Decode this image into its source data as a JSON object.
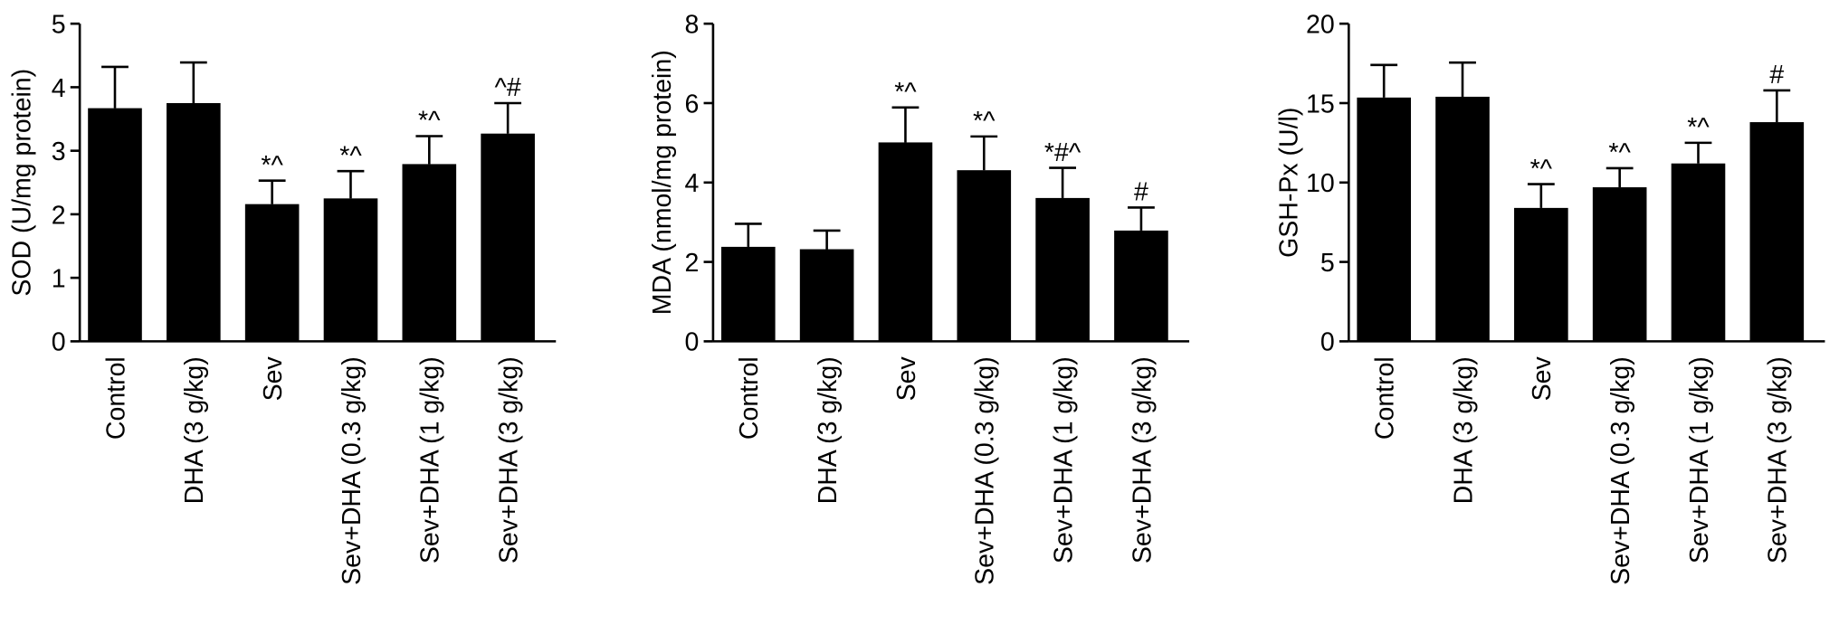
{
  "chart_data": [
    {
      "type": "bar",
      "y_label": "SOD (U/mg protein)",
      "categories": [
        "Control",
        "DHA (3 g/kg)",
        "Sev",
        "Sev+DHA (0.3 g/kg)",
        "Sev+DHA (1 g/kg)",
        "Sev+DHA (3 g/kg)"
      ],
      "values": [
        3.67,
        3.75,
        2.16,
        2.25,
        2.79,
        3.27
      ],
      "errors": [
        0.65,
        0.64,
        0.37,
        0.43,
        0.44,
        0.48
      ],
      "annotations": [
        null,
        null,
        "*^",
        "*^",
        "*^",
        "^#"
      ],
      "color": "#000000",
      "ylim": [
        0,
        5
      ],
      "yticks": [
        0,
        1,
        2,
        3,
        4,
        5
      ]
    },
    {
      "type": "bar",
      "y_label": "MDA (nmol/mg protein)",
      "categories": [
        "Control",
        "DHA (3 g/kg)",
        "Sev",
        "Sev+DHA (0.3 g/kg)",
        "Sev+DHA (1 g/kg)",
        "Sev+DHA (3 g/kg)"
      ],
      "values": [
        2.38,
        2.32,
        5.01,
        4.31,
        3.61,
        2.79
      ],
      "errors": [
        0.58,
        0.47,
        0.88,
        0.85,
        0.76,
        0.58
      ],
      "annotations": [
        null,
        null,
        "*^",
        "*^",
        "*#^",
        "#"
      ],
      "color": "#000000",
      "ylim": [
        0,
        8
      ],
      "yticks": [
        0,
        2,
        4,
        6,
        8
      ]
    },
    {
      "type": "bar",
      "y_label": "GSH-Px (U/l)",
      "categories": [
        "Control",
        "DHA (3 g/kg)",
        "Sev",
        "Sev+DHA (0.3 g/kg)",
        "Sev+DHA (1 g/kg)",
        "Sev+DHA (3 g/kg)"
      ],
      "values": [
        15.35,
        15.4,
        8.4,
        9.7,
        11.2,
        13.8
      ],
      "errors": [
        2.05,
        2.15,
        1.5,
        1.2,
        1.3,
        2.0
      ],
      "annotations": [
        null,
        null,
        "*^",
        "*^",
        "*^",
        "#"
      ],
      "color": "#000000",
      "ylim": [
        0,
        20
      ],
      "yticks": [
        0,
        5,
        10,
        15,
        20
      ]
    }
  ]
}
